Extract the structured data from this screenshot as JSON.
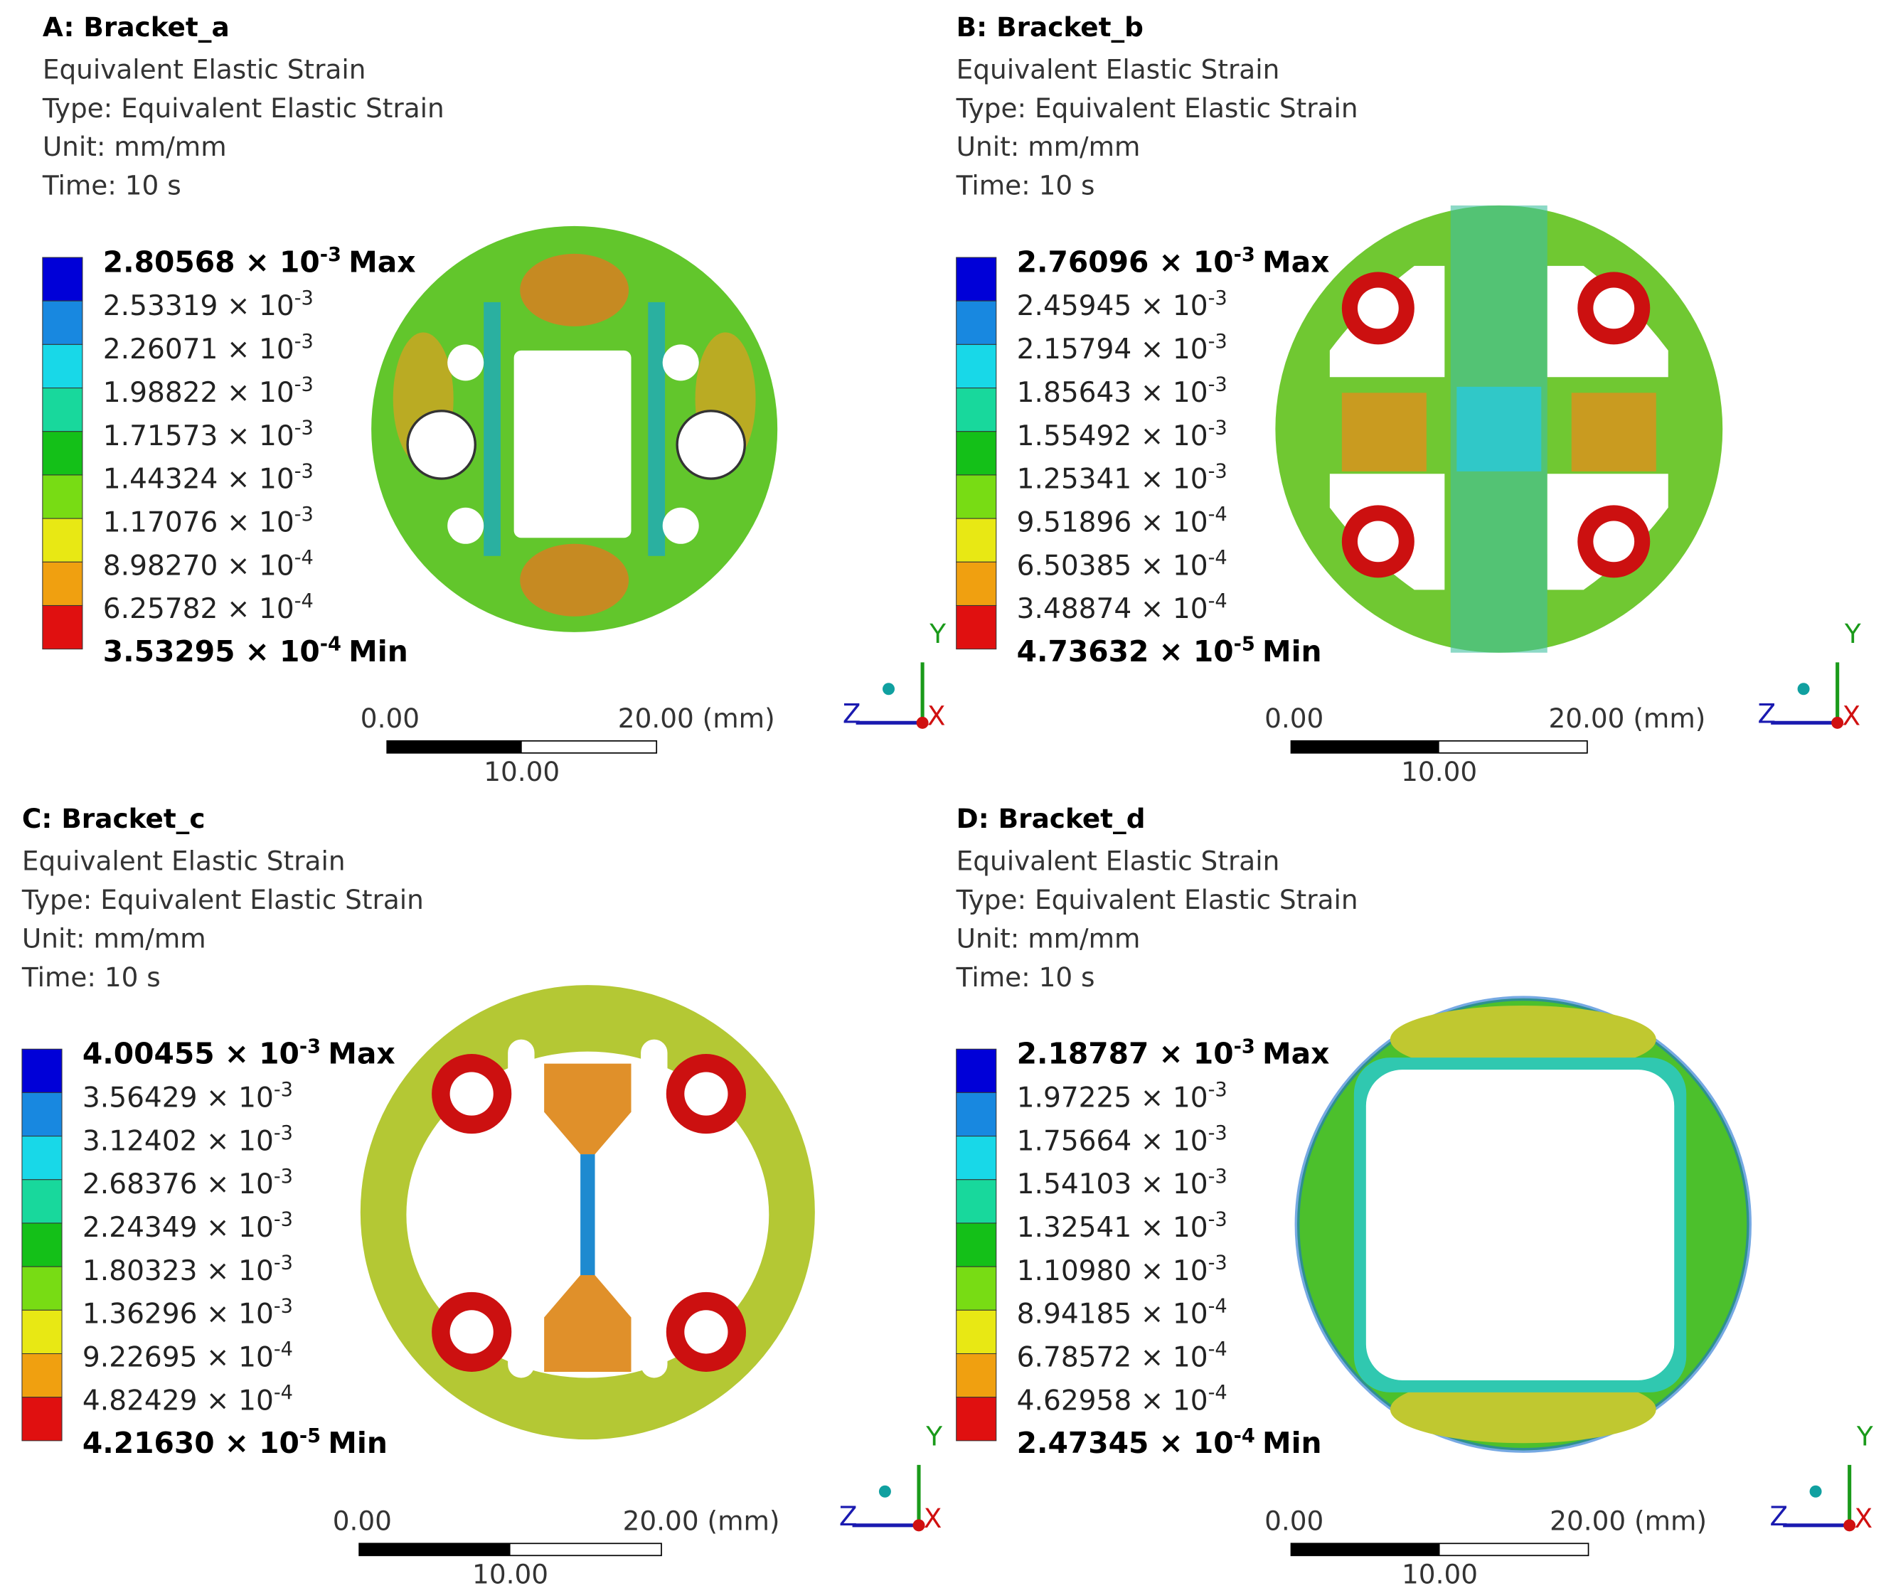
{
  "panels": [
    {
      "title": "A: Bracket_a",
      "result": "Equivalent Elastic Strain",
      "type": "Type: Equivalent Elastic Strain",
      "unit": "Unit: mm/mm",
      "time": "Time: 10 s",
      "legend": [
        {
          "mantissa": "2.80568 × 10",
          "exponent": "-3",
          "suffix": "Max"
        },
        {
          "mantissa": "2.53319 × 10",
          "exponent": "-3"
        },
        {
          "mantissa": "2.26071 × 10",
          "exponent": "-3"
        },
        {
          "mantissa": "1.98822 × 10",
          "exponent": "-3"
        },
        {
          "mantissa": "1.71573 × 10",
          "exponent": "-3"
        },
        {
          "mantissa": "1.44324 × 10",
          "exponent": "-3"
        },
        {
          "mantissa": "1.17076 × 10",
          "exponent": "-3"
        },
        {
          "mantissa": "8.98270 × 10",
          "exponent": "-4"
        },
        {
          "mantissa": "6.25782 × 10",
          "exponent": "-4"
        },
        {
          "mantissa": "3.53295 × 10",
          "exponent": "-4",
          "suffix": "Min"
        }
      ],
      "scale": {
        "start": "0.00",
        "end": "20.00 (mm)",
        "mid": "10.00"
      },
      "axes": {
        "y": "Y",
        "z": "Z",
        "x": "X"
      }
    },
    {
      "title": "B: Bracket_b",
      "result": "Equivalent Elastic Strain",
      "type": "Type: Equivalent Elastic Strain",
      "unit": "Unit: mm/mm",
      "time": "Time: 10 s",
      "legend": [
        {
          "mantissa": "2.76096 × 10",
          "exponent": "-3",
          "suffix": "Max"
        },
        {
          "mantissa": "2.45945 × 10",
          "exponent": "-3"
        },
        {
          "mantissa": "2.15794 × 10",
          "exponent": "-3"
        },
        {
          "mantissa": "1.85643 × 10",
          "exponent": "-3"
        },
        {
          "mantissa": "1.55492 × 10",
          "exponent": "-3"
        },
        {
          "mantissa": "1.25341 × 10",
          "exponent": "-3"
        },
        {
          "mantissa": "9.51896 × 10",
          "exponent": "-4"
        },
        {
          "mantissa": "6.50385 × 10",
          "exponent": "-4"
        },
        {
          "mantissa": "3.48874 × 10",
          "exponent": "-4"
        },
        {
          "mantissa": "4.73632 × 10",
          "exponent": "-5",
          "suffix": "Min"
        }
      ],
      "scale": {
        "start": "0.00",
        "end": "20.00 (mm)",
        "mid": "10.00"
      },
      "axes": {
        "y": "Y",
        "z": "Z",
        "x": "X"
      }
    },
    {
      "title": "C: Bracket_c",
      "result": "Equivalent Elastic Strain",
      "type": "Type: Equivalent Elastic Strain",
      "unit": "Unit: mm/mm",
      "time": "Time: 10 s",
      "legend": [
        {
          "mantissa": "4.00455 × 10",
          "exponent": "-3",
          "suffix": "Max"
        },
        {
          "mantissa": "3.56429 × 10",
          "exponent": "-3"
        },
        {
          "mantissa": "3.12402 × 10",
          "exponent": "-3"
        },
        {
          "mantissa": "2.68376 × 10",
          "exponent": "-3"
        },
        {
          "mantissa": "2.24349 × 10",
          "exponent": "-3"
        },
        {
          "mantissa": "1.80323 × 10",
          "exponent": "-3"
        },
        {
          "mantissa": "1.36296 × 10",
          "exponent": "-3"
        },
        {
          "mantissa": "9.22695 × 10",
          "exponent": "-4"
        },
        {
          "mantissa": "4.82429 × 10",
          "exponent": "-4"
        },
        {
          "mantissa": "4.21630 × 10",
          "exponent": "-5",
          "suffix": "Min"
        }
      ],
      "scale": {
        "start": "0.00",
        "end": "20.00 (mm)",
        "mid": "10.00"
      },
      "axes": {
        "y": "Y",
        "z": "Z",
        "x": "X"
      }
    },
    {
      "title": "D: Bracket_d",
      "result": "Equivalent Elastic Strain",
      "type": "Type: Equivalent Elastic Strain",
      "unit": "Unit: mm/mm",
      "time": "Time: 10 s",
      "legend": [
        {
          "mantissa": "2.18787 × 10",
          "exponent": "-3",
          "suffix": "Max"
        },
        {
          "mantissa": "1.97225 × 10",
          "exponent": "-3"
        },
        {
          "mantissa": "1.75664 × 10",
          "exponent": "-3"
        },
        {
          "mantissa": "1.54103 × 10",
          "exponent": "-3"
        },
        {
          "mantissa": "1.32541 × 10",
          "exponent": "-3"
        },
        {
          "mantissa": "1.10980 × 10",
          "exponent": "-3"
        },
        {
          "mantissa": "8.94185 × 10",
          "exponent": "-4"
        },
        {
          "mantissa": "6.78572 × 10",
          "exponent": "-4"
        },
        {
          "mantissa": "4.62958 × 10",
          "exponent": "-4"
        },
        {
          "mantissa": "2.47345 × 10",
          "exponent": "-4",
          "suffix": "Min"
        }
      ],
      "scale": {
        "start": "0.00",
        "end": "20.00 (mm)",
        "mid": "10.00"
      },
      "axes": {
        "y": "Y",
        "z": "Z",
        "x": "X"
      }
    }
  ],
  "legend_colors": [
    "#0000d8",
    "#1888e0",
    "#18d8e8",
    "#18d89c",
    "#14c018",
    "#78dc14",
    "#e8e814",
    "#f0a010",
    "#e01010"
  ]
}
